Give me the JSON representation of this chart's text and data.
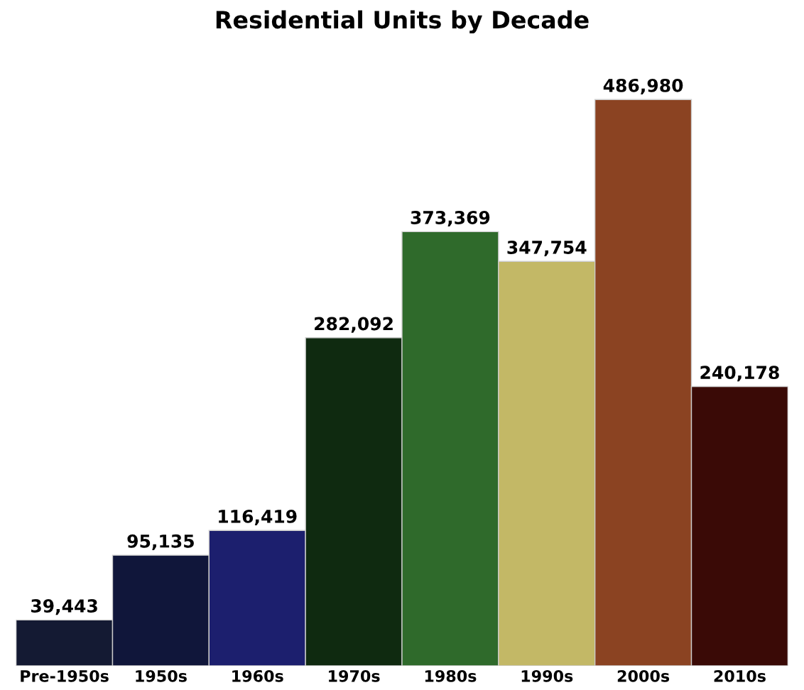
{
  "chart_data": {
    "type": "bar",
    "title": "Residential Units by Decade",
    "categories": [
      "Pre-1950s",
      "1950s",
      "1960s",
      "1970s",
      "1980s",
      "1990s",
      "2000s",
      "2010s"
    ],
    "values": [
      39443,
      95135,
      116419,
      282092,
      373369,
      347754,
      486980,
      240178
    ],
    "colors": [
      "#141a33",
      "#10163a",
      "#1c1f6e",
      "#0f2a10",
      "#2f6a2b",
      "#c3b866",
      "#8b4322",
      "#3a0a06"
    ],
    "value_labels": [
      "39,443",
      "95,135",
      "116,419",
      "282,092",
      "373,369",
      "347,754",
      "486,980",
      "240,178"
    ],
    "grid": false,
    "legend": false
  }
}
